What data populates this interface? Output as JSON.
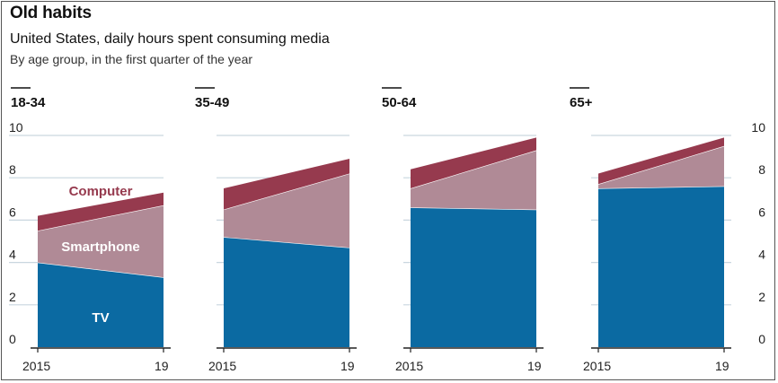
{
  "header": {
    "title": "Old habits",
    "subtitle": "United States, daily hours spent consuming media",
    "note": "By age group, in the first quarter of the year"
  },
  "colors": {
    "tv": "#0b6aa2",
    "smartphone": "#b08a96",
    "computer": "#963a4e",
    "grid": "#c9d6df",
    "axis": "#222222"
  },
  "chart_data": {
    "type": "area",
    "stacked": true,
    "x": [
      "2015",
      "19"
    ],
    "ylim": [
      0,
      10
    ],
    "yticks": [
      0,
      2,
      4,
      6,
      8,
      10
    ],
    "series_labels": [
      "TV",
      "Smartphone",
      "Computer"
    ],
    "panels": [
      {
        "label": "18-34",
        "series": [
          {
            "name": "TV",
            "values": [
              4.0,
              3.3
            ]
          },
          {
            "name": "Smartphone",
            "values": [
              1.5,
              3.4
            ]
          },
          {
            "name": "Computer",
            "values": [
              0.7,
              0.6
            ]
          }
        ]
      },
      {
        "label": "35-49",
        "series": [
          {
            "name": "TV",
            "values": [
              5.2,
              4.7
            ]
          },
          {
            "name": "Smartphone",
            "values": [
              1.3,
              3.5
            ]
          },
          {
            "name": "Computer",
            "values": [
              1.0,
              0.7
            ]
          }
        ]
      },
      {
        "label": "50-64",
        "series": [
          {
            "name": "TV",
            "values": [
              6.6,
              6.5
            ]
          },
          {
            "name": "Smartphone",
            "values": [
              0.9,
              2.8
            ]
          },
          {
            "name": "Computer",
            "values": [
              0.9,
              0.6
            ]
          }
        ]
      },
      {
        "label": "65+",
        "series": [
          {
            "name": "TV",
            "values": [
              7.5,
              7.6
            ]
          },
          {
            "name": "Smartphone",
            "values": [
              0.2,
              1.9
            ]
          },
          {
            "name": "Computer",
            "values": [
              0.5,
              0.4
            ]
          }
        ]
      }
    ]
  }
}
